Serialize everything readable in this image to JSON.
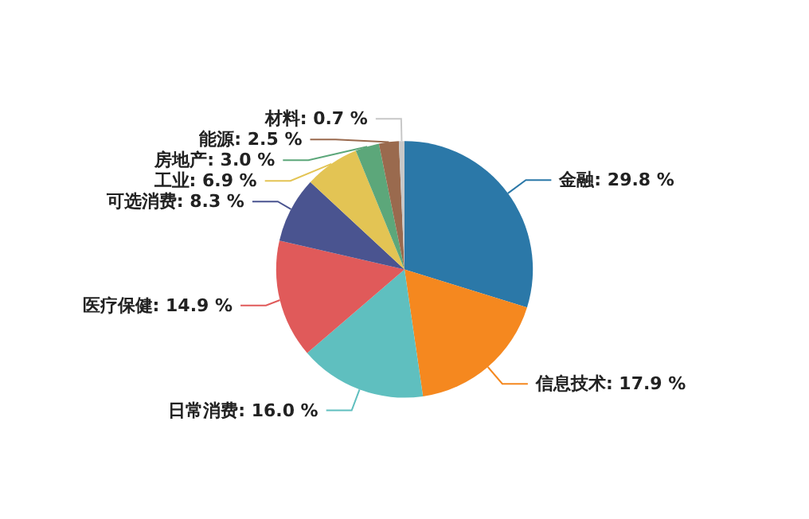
{
  "chart_data": {
    "type": "pie",
    "categories": [
      "金融",
      "信息技术",
      "日常消费",
      "医疗保健",
      "可选消费",
      "工业",
      "房地产",
      "能源",
      "材料"
    ],
    "values": [
      29.8,
      17.9,
      16.0,
      14.9,
      8.3,
      6.9,
      3.0,
      2.5,
      0.7
    ],
    "value_labels": [
      "29.8 %",
      "17.9 %",
      "16.0 %",
      "14.9 %",
      "8.3 %",
      "6.9 %",
      "3.0 %",
      "2.5 %",
      "0.7 %"
    ],
    "colors": [
      "#2b78a8",
      "#f5881f",
      "#5fbfbf",
      "#e05a5a",
      "#4a5490",
      "#e3c454",
      "#5ca77a",
      "#9a6a4e",
      "#c8c8c8"
    ],
    "legend": false
  }
}
